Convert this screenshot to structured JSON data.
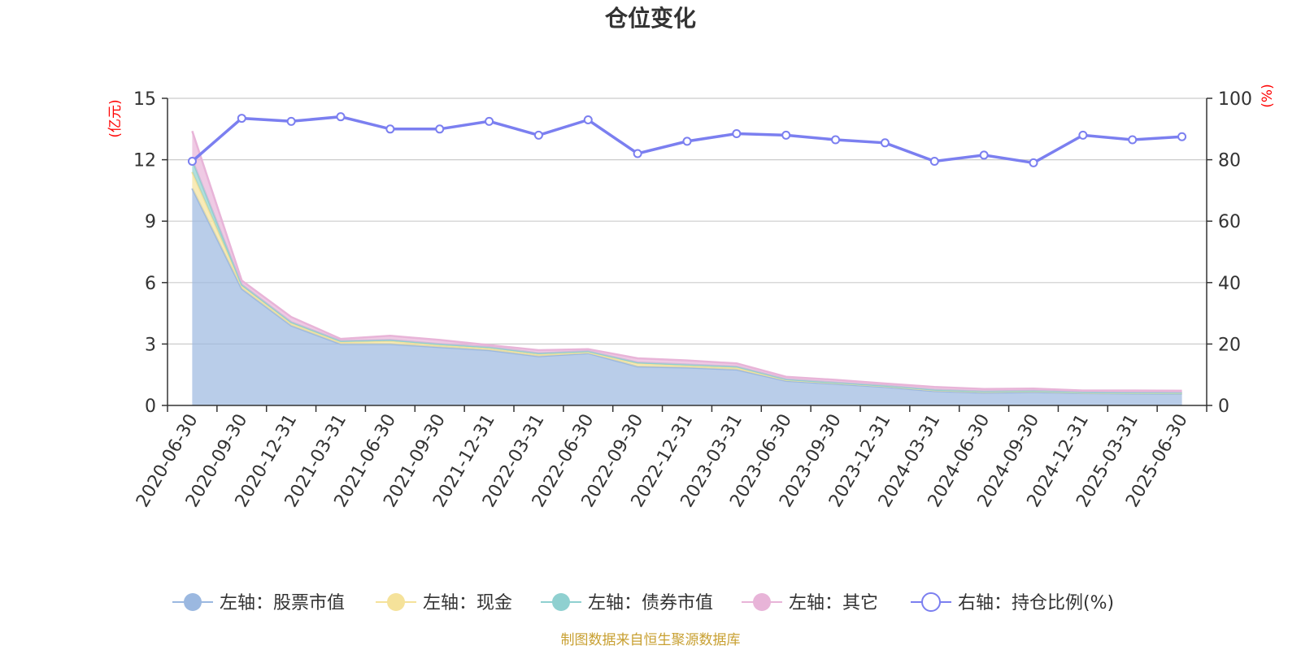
{
  "chart_data": {
    "type": "area",
    "title": "仓位变化",
    "left_axis_unit": "(亿元)",
    "right_axis_unit": "(%)",
    "left_ylim": [
      0,
      15
    ],
    "left_ticks": [
      "0",
      "3",
      "6",
      "9",
      "12",
      "15"
    ],
    "right_ylim": [
      0,
      100
    ],
    "right_ticks": [
      "0",
      "20",
      "40",
      "60",
      "80",
      "100"
    ],
    "categories": [
      "2020-06-30",
      "2020-09-30",
      "2020-12-31",
      "2021-03-31",
      "2021-06-30",
      "2021-09-30",
      "2021-12-31",
      "2022-03-31",
      "2022-06-30",
      "2022-09-30",
      "2022-12-31",
      "2023-03-31",
      "2023-06-30",
      "2023-09-30",
      "2023-12-31",
      "2024-03-31",
      "2024-06-30",
      "2024-09-30",
      "2024-12-31",
      "2025-03-31",
      "2025-06-30"
    ],
    "stacked_series": [
      {
        "name": "左轴：股票市值",
        "axis": "left",
        "color": "#9bb8e0",
        "values": [
          10.6,
          5.7,
          3.9,
          3.0,
          3.0,
          2.85,
          2.7,
          2.4,
          2.55,
          1.9,
          1.85,
          1.75,
          1.2,
          1.05,
          0.9,
          0.7,
          0.62,
          0.65,
          0.6,
          0.58,
          0.57
        ]
      },
      {
        "name": "左轴：现金",
        "axis": "left",
        "color": "#f5e29a",
        "values": [
          0.8,
          0.15,
          0.12,
          0.1,
          0.15,
          0.1,
          0.1,
          0.1,
          0.05,
          0.15,
          0.1,
          0.1,
          0.05,
          0.05,
          0.05,
          0.05,
          0.05,
          0.05,
          0.03,
          0.03,
          0.03
        ]
      },
      {
        "name": "左轴：债券市值",
        "axis": "left",
        "color": "#8fd0d0",
        "values": [
          0.6,
          0.05,
          0.05,
          0.05,
          0.05,
          0.05,
          0.05,
          0.05,
          0.05,
          0.05,
          0.05,
          0.05,
          0.03,
          0.02,
          0.02,
          0.02,
          0.02,
          0.02,
          0.02,
          0.02,
          0.02
        ]
      },
      {
        "name": "左轴：其它",
        "axis": "left",
        "color": "#e8b4d8",
        "values": [
          1.4,
          0.2,
          0.25,
          0.1,
          0.2,
          0.2,
          0.1,
          0.15,
          0.1,
          0.2,
          0.2,
          0.15,
          0.12,
          0.13,
          0.1,
          0.13,
          0.11,
          0.1,
          0.08,
          0.1,
          0.1
        ]
      }
    ],
    "line_series": {
      "name": "右轴：持仓比例(%)",
      "axis": "right",
      "color": "#7b7ff0",
      "values": [
        79.5,
        93.5,
        92.5,
        94,
        90,
        90,
        92.5,
        88,
        93,
        82,
        86,
        88.5,
        88,
        86.5,
        85.5,
        79.5,
        81.5,
        79,
        88,
        86.5,
        87.5
      ]
    },
    "legend_position": "bottom",
    "grid": true
  },
  "footer": {
    "source": "制图数据来自恒生聚源数据库"
  }
}
